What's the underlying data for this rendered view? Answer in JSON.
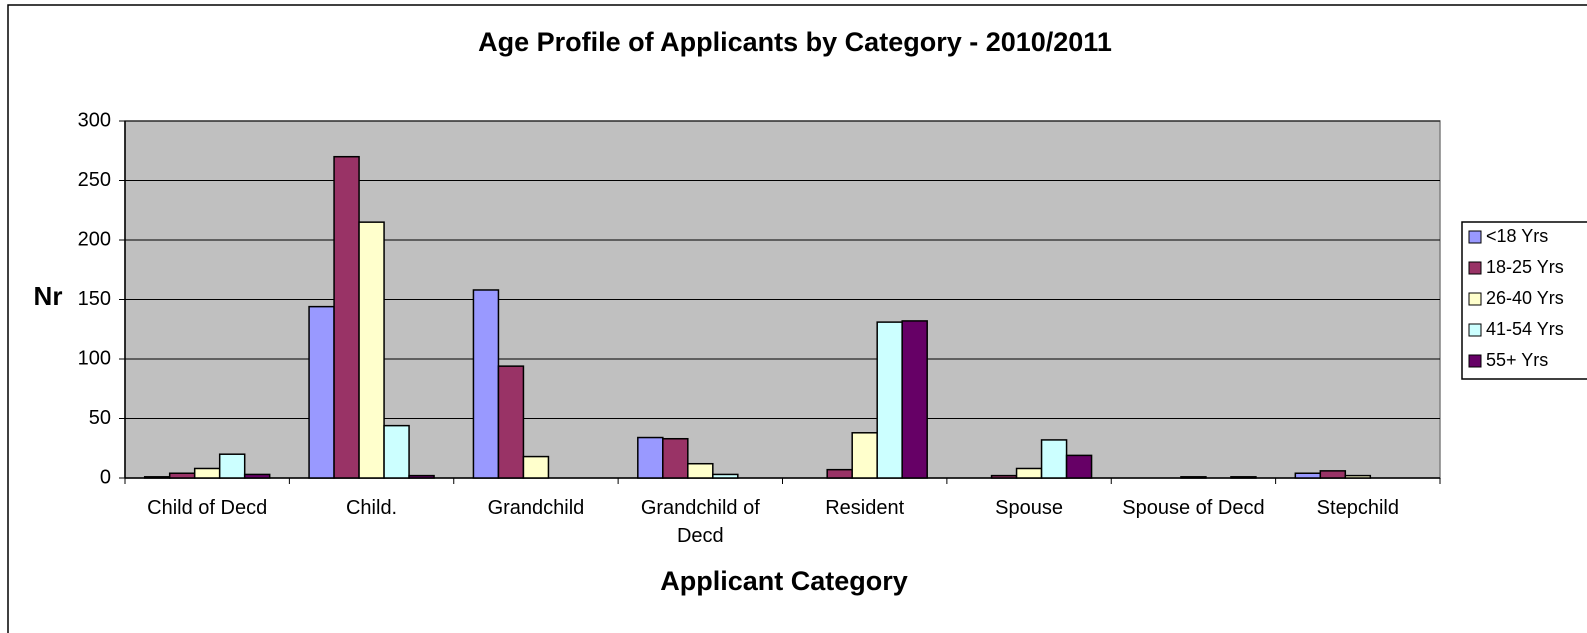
{
  "chart_data": {
    "type": "bar",
    "title": "Age Profile of Applicants by Category - 2010/2011",
    "x_label": "Applicant Category",
    "y_label": "Nr",
    "categories": [
      "Child of Decd",
      "Child.",
      "Grandchild",
      "Grandchild of Decd",
      "Resident",
      "Spouse",
      "Spouse of Decd",
      "Stepchild"
    ],
    "series": [
      {
        "name": "<18 Yrs",
        "color": "#9999ff",
        "values": [
          1,
          144,
          158,
          34,
          0,
          0,
          0,
          4
        ]
      },
      {
        "name": "18-25 Yrs",
        "color": "#993366",
        "values": [
          4,
          270,
          94,
          33,
          7,
          2,
          0,
          6
        ]
      },
      {
        "name": "26-40 Yrs",
        "color": "#ffffcc",
        "values": [
          8,
          215,
          18,
          12,
          38,
          8,
          1,
          2
        ]
      },
      {
        "name": "41-54 Yrs",
        "color": "#ccffff",
        "values": [
          20,
          44,
          0,
          3,
          131,
          32,
          0,
          0
        ]
      },
      {
        "name": "55+ Yrs",
        "color": "#660066",
        "values": [
          3,
          2,
          0,
          0,
          132,
          19,
          1,
          0
        ]
      }
    ],
    "ylim": [
      0,
      300
    ],
    "yticks": [
      0,
      50,
      100,
      150,
      200,
      250,
      300
    ],
    "grid": true,
    "legend": "right",
    "plot_background": "#c0c0c0"
  }
}
